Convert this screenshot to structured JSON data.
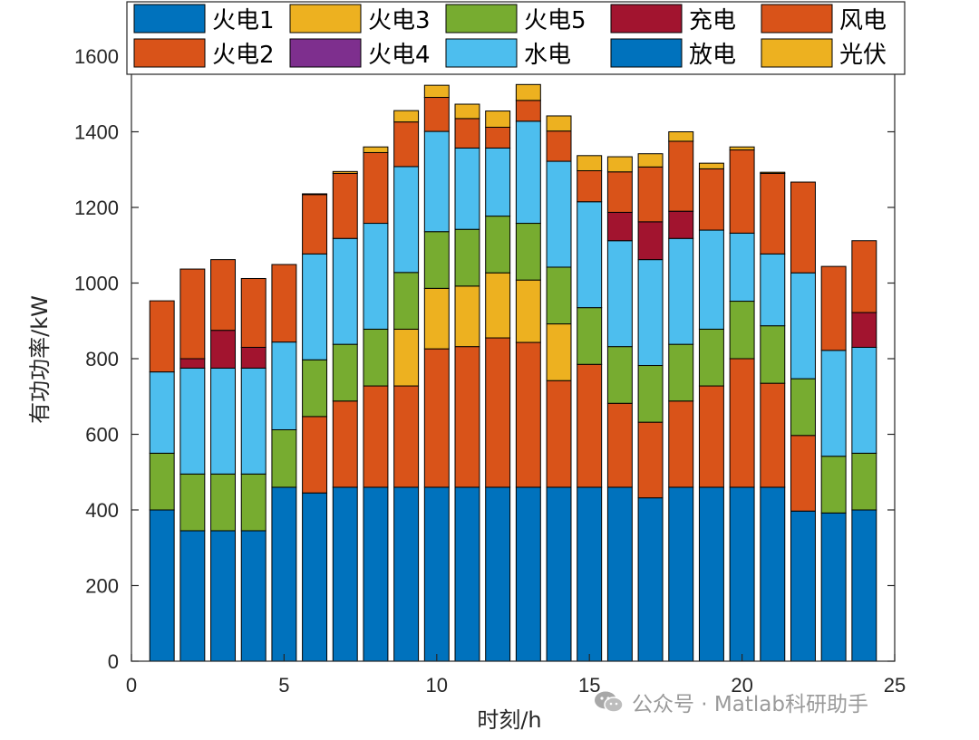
{
  "chart_data": {
    "type": "stacked-bar",
    "xlabel": "时刻/h",
    "ylabel": "有功功率/kW",
    "xlim": [
      0,
      25
    ],
    "ylim": [
      0,
      1600
    ],
    "xticks": [
      0,
      5,
      10,
      15,
      20,
      25
    ],
    "yticks": [
      0,
      200,
      400,
      600,
      800,
      1000,
      1200,
      1400,
      1600
    ],
    "grid": false,
    "legend_position": "top",
    "categories": [
      1,
      2,
      3,
      4,
      5,
      6,
      7,
      8,
      9,
      10,
      11,
      12,
      13,
      14,
      15,
      16,
      17,
      18,
      19,
      20,
      21,
      22,
      23,
      24
    ],
    "series": [
      {
        "name": "火电1",
        "color": "#0072BD",
        "values": [
          400,
          345,
          345,
          345,
          460,
          445,
          460,
          460,
          460,
          460,
          460,
          460,
          460,
          460,
          460,
          460,
          432,
          460,
          460,
          460,
          460,
          397,
          392,
          400
        ]
      },
      {
        "name": "火电2",
        "color": "#D95319",
        "values": [
          0,
          0,
          0,
          0,
          0,
          202,
          228,
          268,
          268,
          366,
          372,
          395,
          383,
          282,
          325,
          222,
          200,
          228,
          268,
          340,
          275,
          200,
          0,
          0
        ]
      },
      {
        "name": "火电3",
        "color": "#EDB120",
        "values": [
          0,
          0,
          0,
          0,
          0,
          0,
          0,
          0,
          150,
          160,
          160,
          172,
          165,
          150,
          0,
          0,
          0,
          0,
          0,
          0,
          0,
          0,
          0,
          0
        ]
      },
      {
        "name": "火电4",
        "color": "#7E2F8E",
        "values": [
          0,
          0,
          0,
          0,
          0,
          0,
          0,
          0,
          0,
          0,
          0,
          0,
          0,
          0,
          0,
          0,
          0,
          0,
          0,
          0,
          0,
          0,
          0,
          0
        ]
      },
      {
        "name": "火电5",
        "color": "#77AC30",
        "values": [
          150,
          150,
          150,
          150,
          152,
          150,
          150,
          150,
          150,
          150,
          150,
          150,
          150,
          150,
          150,
          150,
          150,
          150,
          150,
          152,
          152,
          150,
          150,
          150
        ]
      },
      {
        "name": "水电",
        "color": "#4DBEEE",
        "values": [
          215,
          280,
          280,
          280,
          232,
          280,
          280,
          280,
          280,
          265,
          215,
          180,
          270,
          280,
          280,
          280,
          280,
          280,
          262,
          180,
          190,
          280,
          280,
          280
        ]
      },
      {
        "name": "充电",
        "color": "#A2142F",
        "values": [
          0,
          25,
          100,
          55,
          0,
          0,
          0,
          0,
          0,
          0,
          0,
          0,
          0,
          0,
          0,
          75,
          100,
          72,
          0,
          0,
          0,
          0,
          0,
          92
        ]
      },
      {
        "name": "放电",
        "color": "#0072BD",
        "values": [
          0,
          0,
          0,
          0,
          0,
          0,
          0,
          0,
          0,
          0,
          0,
          0,
          0,
          0,
          0,
          0,
          0,
          0,
          0,
          0,
          0,
          0,
          0,
          0
        ]
      },
      {
        "name": "风电",
        "color": "#D95319",
        "values": [
          188,
          237,
          187,
          182,
          205,
          157,
          172,
          187,
          118,
          90,
          78,
          55,
          55,
          80,
          82,
          107,
          145,
          185,
          162,
          220,
          213,
          240,
          222,
          190
        ]
      },
      {
        "name": "光伏",
        "color": "#EDB120",
        "values": [
          0,
          0,
          0,
          0,
          0,
          2,
          5,
          15,
          30,
          32,
          38,
          43,
          42,
          40,
          40,
          40,
          35,
          25,
          15,
          8,
          3,
          0,
          0,
          0
        ]
      }
    ],
    "legend_entries": [
      "火电1",
      "火电3",
      "火电5",
      "充电",
      "风电",
      "火电2",
      "火电4",
      "水电",
      "放电",
      "光伏"
    ]
  },
  "watermark": {
    "text": "公众号 · Matlab科研助手",
    "icon": "wechat-icon"
  }
}
